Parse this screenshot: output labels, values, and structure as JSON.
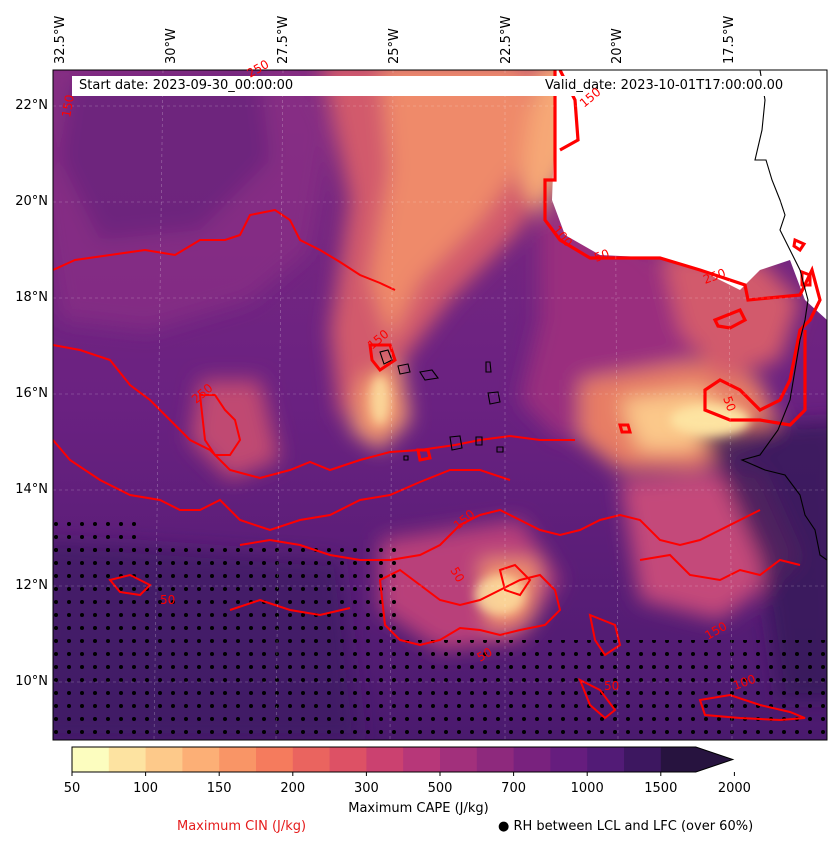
{
  "map": {
    "start_date": "Start date: 2023-09-30_00:00:00",
    "valid_date": "Valid_date: 2023-10-01T17:00:00.00",
    "lon_labels": [
      "32.5°W",
      "30°W",
      "27.5°W",
      "25°W",
      "22.5°W",
      "20°W",
      "17.5°W"
    ],
    "lat_labels": [
      "22°N",
      "20°N",
      "18°N",
      "16°N",
      "14°N",
      "12°N",
      "10°N"
    ],
    "contour_labels": [
      "150",
      "250",
      "250",
      "150",
      "150",
      "50",
      "250",
      "100",
      "50",
      "50",
      "150",
      "50",
      "50",
      "150",
      "50",
      "100"
    ],
    "colorbar": {
      "ticks": [
        "50",
        "100",
        "150",
        "200",
        "300",
        "500",
        "700",
        "1000",
        "1500",
        "2000"
      ],
      "label": "Maximum CAPE (J/kg)",
      "colors": [
        "#fcfdbf",
        "#fde3a1",
        "#fdc98a",
        "#fcaf76",
        "#f99566",
        "#f57b5d",
        "#ea645f",
        "#dd5165",
        "#cb4170",
        "#b73779",
        "#a2307c",
        "#8e297d",
        "#79227e",
        "#661d7e",
        "#521b76",
        "#3d1760",
        "#27133f"
      ]
    },
    "cin_label": "Maximum CIN (J/kg)",
    "rh_label": "● RH between LCL and LFC (over 60%)",
    "colors": {
      "cin_contour": "#ff0000",
      "land": "#ffffff",
      "coast": "#000000"
    }
  }
}
